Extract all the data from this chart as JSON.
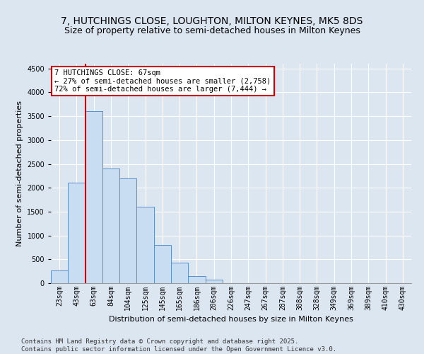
{
  "title": "7, HUTCHINGS CLOSE, LOUGHTON, MILTON KEYNES, MK5 8DS",
  "subtitle": "Size of property relative to semi-detached houses in Milton Keynes",
  "xlabel": "Distribution of semi-detached houses by size in Milton Keynes",
  "ylabel": "Number of semi-detached properties",
  "categories": [
    "23sqm",
    "43sqm",
    "63sqm",
    "84sqm",
    "104sqm",
    "125sqm",
    "145sqm",
    "165sqm",
    "186sqm",
    "206sqm",
    "226sqm",
    "247sqm",
    "267sqm",
    "287sqm",
    "308sqm",
    "328sqm",
    "349sqm",
    "369sqm",
    "389sqm",
    "410sqm",
    "430sqm"
  ],
  "values": [
    270,
    2100,
    3600,
    2400,
    2200,
    1600,
    800,
    430,
    150,
    80,
    0,
    0,
    0,
    0,
    0,
    0,
    0,
    0,
    0,
    0,
    0
  ],
  "bar_color": "#c9ddf2",
  "bar_edge_color": "#5b8fc9",
  "vline_color": "#cc0000",
  "vline_x_index": 2,
  "annotation_text": "7 HUTCHINGS CLOSE: 67sqm\n← 27% of semi-detached houses are smaller (2,758)\n72% of semi-detached houses are larger (7,444) →",
  "annotation_box_facecolor": "#ffffff",
  "annotation_box_edgecolor": "#cc0000",
  "ylim": [
    0,
    4600
  ],
  "yticks": [
    0,
    500,
    1000,
    1500,
    2000,
    2500,
    3000,
    3500,
    4000,
    4500
  ],
  "background_color": "#dce6f1",
  "grid_color": "#ffffff",
  "footer": "Contains HM Land Registry data © Crown copyright and database right 2025.\nContains public sector information licensed under the Open Government Licence v3.0.",
  "title_fontsize": 10,
  "subtitle_fontsize": 9,
  "xlabel_fontsize": 8,
  "ylabel_fontsize": 8,
  "tick_fontsize": 7,
  "annotation_fontsize": 7.5,
  "footer_fontsize": 6.5
}
